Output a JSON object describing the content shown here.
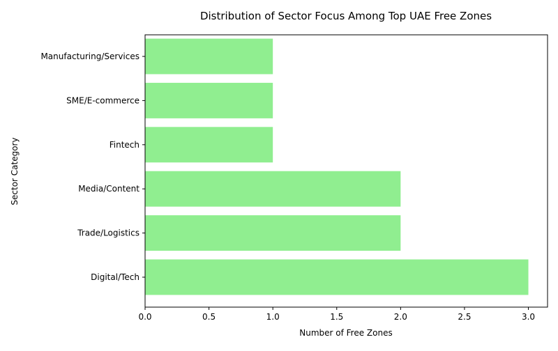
{
  "chart_data": {
    "type": "bar",
    "orientation": "horizontal",
    "title": "Distribution of Sector Focus Among Top UAE Free Zones",
    "xlabel": "Number of Free Zones",
    "ylabel": "Sector Category",
    "categories": [
      "Digital/Tech",
      "Trade/Logistics",
      "Media/Content",
      "Fintech",
      "SME/E-commerce",
      "Manufacturing/Services"
    ],
    "values": [
      3,
      2,
      2,
      1,
      1,
      1
    ],
    "xlim": [
      0,
      3.15
    ],
    "xticks": [
      "0.0",
      "0.5",
      "1.0",
      "1.5",
      "2.0",
      "2.5",
      "3.0"
    ],
    "bar_color": "#90ee90",
    "grid": false,
    "legend": "none"
  }
}
